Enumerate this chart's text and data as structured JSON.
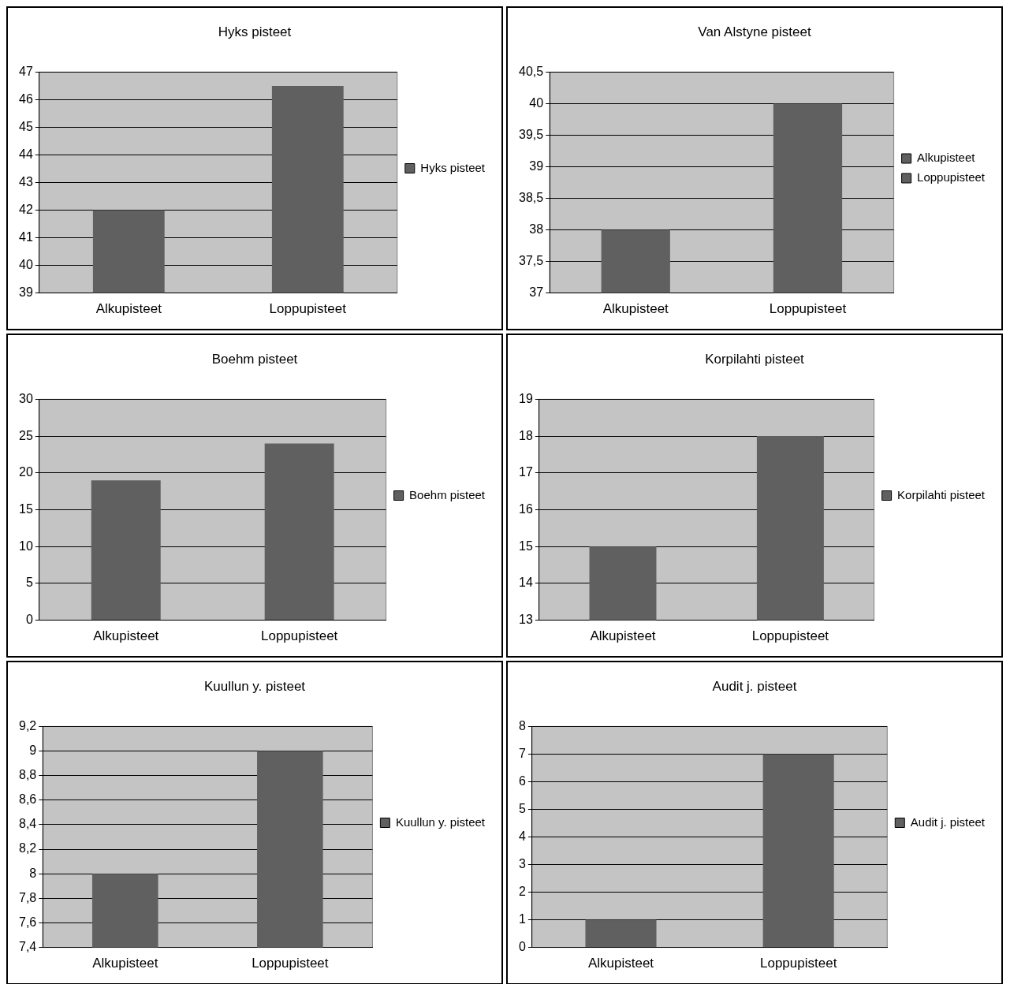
{
  "chart_data": [
    {
      "type": "bar",
      "title": "Hyks pisteet",
      "categories": [
        "Alkupisteet",
        "Loppupisteet"
      ],
      "series": [
        {
          "name": "Hyks pisteet",
          "color": "#606060",
          "values": [
            42,
            46.5
          ]
        }
      ],
      "ylim": [
        39,
        47
      ],
      "yticks": [
        39,
        40,
        41,
        42,
        43,
        44,
        45,
        46,
        47
      ],
      "grid": "y",
      "legend": "right"
    },
    {
      "type": "bar",
      "title": "Van Alstyne pisteet",
      "categories": [
        "Alkupisteet",
        "Loppupisteet"
      ],
      "series": [
        {
          "name": "Alkupisteet",
          "color": "#606060",
          "values": [
            38,
            null
          ]
        },
        {
          "name": "Loppupisteet",
          "color": "#606060",
          "values": [
            null,
            40
          ]
        }
      ],
      "ylim": [
        37,
        40.5
      ],
      "yticks": [
        37,
        {
          "value": 37.5,
          "label": "37,5"
        },
        38,
        {
          "value": 38.5,
          "label": "38,5"
        },
        39,
        {
          "value": 39.5,
          "label": "39,5"
        },
        40,
        {
          "value": 40.5,
          "label": "40,5"
        }
      ],
      "grid": "y",
      "legend": "right"
    },
    {
      "type": "bar",
      "title": "Boehm pisteet",
      "categories": [
        "Alkupisteet",
        "Loppupisteet"
      ],
      "series": [
        {
          "name": "Boehm pisteet",
          "color": "#606060",
          "values": [
            19,
            24
          ]
        }
      ],
      "ylim": [
        0,
        30
      ],
      "yticks": [
        0,
        5,
        10,
        15,
        20,
        25,
        30
      ],
      "grid": "y",
      "legend": "right"
    },
    {
      "type": "bar",
      "title": "Korpilahti pisteet",
      "categories": [
        "Alkupisteet",
        "Loppupisteet"
      ],
      "series": [
        {
          "name": "Korpilahti pisteet",
          "color": "#606060",
          "values": [
            15,
            18
          ]
        }
      ],
      "ylim": [
        13,
        19
      ],
      "yticks": [
        13,
        14,
        15,
        16,
        17,
        18,
        19
      ],
      "grid": "y",
      "legend": "right"
    },
    {
      "type": "bar",
      "title": "Kuullun y. pisteet",
      "categories": [
        "Alkupisteet",
        "Loppupisteet"
      ],
      "series": [
        {
          "name": "Kuullun y. pisteet",
          "color": "#606060",
          "values": [
            8,
            9
          ]
        }
      ],
      "ylim": [
        7.4,
        9.2
      ],
      "yticks": [
        {
          "value": 7.4,
          "label": "7,4"
        },
        {
          "value": 7.6,
          "label": "7,6"
        },
        {
          "value": 7.8,
          "label": "7,8"
        },
        8,
        {
          "value": 8.2,
          "label": "8,2"
        },
        {
          "value": 8.4,
          "label": "8,4"
        },
        {
          "value": 8.6,
          "label": "8,6"
        },
        {
          "value": 8.8,
          "label": "8,8"
        },
        9,
        {
          "value": 9.2,
          "label": "9,2"
        }
      ],
      "grid": "y",
      "legend": "right"
    },
    {
      "type": "bar",
      "title": "Audit j. pisteet",
      "categories": [
        "Alkupisteet",
        "Loppupisteet"
      ],
      "series": [
        {
          "name": "Audit j. pisteet",
          "color": "#606060",
          "values": [
            1,
            7
          ]
        }
      ],
      "ylim": [
        0,
        8
      ],
      "yticks": [
        0,
        1,
        2,
        3,
        4,
        5,
        6,
        7,
        8
      ],
      "grid": "y",
      "legend": "right"
    }
  ]
}
